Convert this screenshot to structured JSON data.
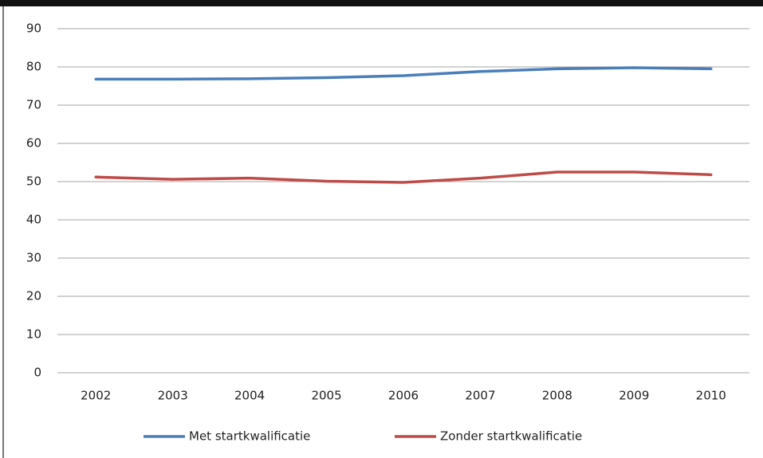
{
  "chart_data": {
    "type": "line",
    "categories": [
      "2002",
      "2003",
      "2004",
      "2005",
      "2006",
      "2007",
      "2008",
      "2009",
      "2010"
    ],
    "series": [
      {
        "name": "Met startkwalificatie",
        "color": "#4a7ebb",
        "values": [
          76.8,
          76.8,
          76.9,
          77.2,
          77.7,
          78.8,
          79.5,
          79.8,
          79.5
        ]
      },
      {
        "name": "Zonder startkwalificatie",
        "color": "#be4b48",
        "values": [
          51.2,
          50.6,
          50.9,
          50.1,
          49.8,
          50.9,
          52.5,
          52.5,
          51.8
        ]
      }
    ],
    "ylim": [
      0,
      90
    ],
    "yticks": [
      0,
      10,
      20,
      30,
      40,
      50,
      60,
      70,
      80,
      90
    ],
    "grid": true,
    "legend": "bottom"
  }
}
